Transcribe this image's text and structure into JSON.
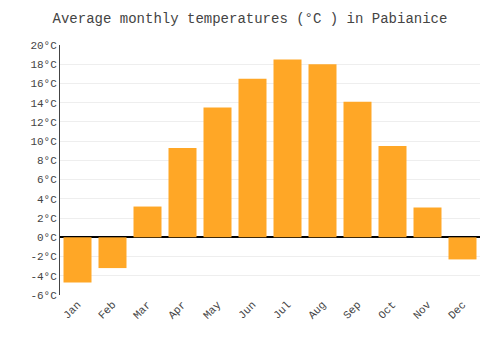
{
  "chart_data": {
    "type": "bar",
    "title": "Average monthly temperatures (°C ) in Pabianice",
    "categories": [
      "Jan",
      "Feb",
      "Mar",
      "Apr",
      "May",
      "Jun",
      "Jul",
      "Aug",
      "Sep",
      "Oct",
      "Nov",
      "Dec"
    ],
    "values": [
      -4.7,
      -3.2,
      3.2,
      9.3,
      13.5,
      16.5,
      18.5,
      18.0,
      14.1,
      9.5,
      3.1,
      -2.3
    ],
    "color": "#FFA726",
    "ylim": [
      -6,
      20
    ],
    "yticks": [
      {
        "value": -6,
        "label": "-6°C"
      },
      {
        "value": -4,
        "label": "-4°C"
      },
      {
        "value": -2,
        "label": "-2°C"
      },
      {
        "value": 0,
        "label": "0°C"
      },
      {
        "value": 2,
        "label": "2°C"
      },
      {
        "value": 4,
        "label": "4°C"
      },
      {
        "value": 6,
        "label": "6°C"
      },
      {
        "value": 8,
        "label": "8°C"
      },
      {
        "value": 10,
        "label": "10°C"
      },
      {
        "value": 12,
        "label": "12°C"
      },
      {
        "value": 14,
        "label": "14°C"
      },
      {
        "value": 16,
        "label": "16°C"
      },
      {
        "value": 18,
        "label": "18°C"
      },
      {
        "value": 20,
        "label": "20°C"
      }
    ],
    "grid": true
  }
}
